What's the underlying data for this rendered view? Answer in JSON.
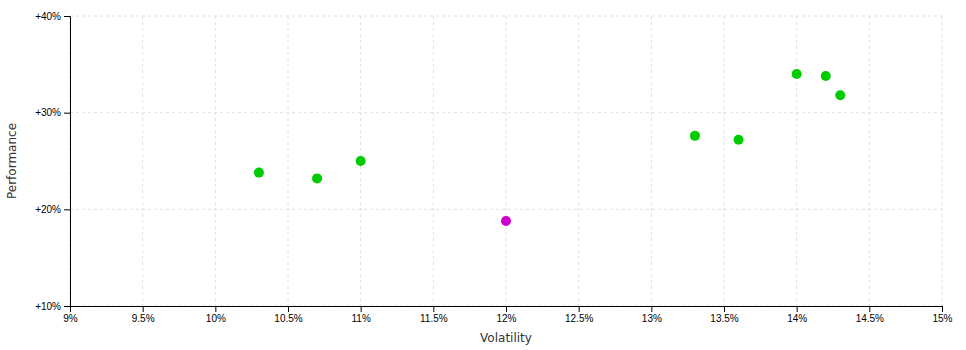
{
  "chart_data": {
    "type": "scatter",
    "xlabel": "Volatility",
    "ylabel": "Performance",
    "xlim": [
      0.09,
      0.15
    ],
    "ylim": [
      0.1,
      0.4
    ],
    "xticks": [
      {
        "value": 0.09,
        "label": "9%"
      },
      {
        "value": 0.095,
        "label": "9.5%"
      },
      {
        "value": 0.1,
        "label": "10%"
      },
      {
        "value": 0.105,
        "label": "10.5%"
      },
      {
        "value": 0.11,
        "label": "11%"
      },
      {
        "value": 0.115,
        "label": "11.5%"
      },
      {
        "value": 0.12,
        "label": "12%"
      },
      {
        "value": 0.125,
        "label": "12.5%"
      },
      {
        "value": 0.13,
        "label": "13%"
      },
      {
        "value": 0.135,
        "label": "13.5%"
      },
      {
        "value": 0.14,
        "label": "14%"
      },
      {
        "value": 0.145,
        "label": "14.5%"
      },
      {
        "value": 0.15,
        "label": "15%"
      }
    ],
    "yticks": [
      {
        "value": 0.1,
        "label": "+10%"
      },
      {
        "value": 0.2,
        "label": "+20%"
      },
      {
        "value": 0.3,
        "label": "+30%"
      },
      {
        "value": 0.4,
        "label": "+40%"
      }
    ],
    "grid": true,
    "series": [
      {
        "color": "#00cc00",
        "x": [
          0.103,
          0.107,
          0.11,
          0.133,
          0.136,
          0.14,
          0.142,
          0.143
        ],
        "values": [
          0.238,
          0.232,
          0.25,
          0.276,
          0.272,
          0.34,
          0.338,
          0.318
        ]
      },
      {
        "color": "#cc00cc",
        "x": [
          0.12
        ],
        "values": [
          0.188
        ]
      }
    ]
  }
}
